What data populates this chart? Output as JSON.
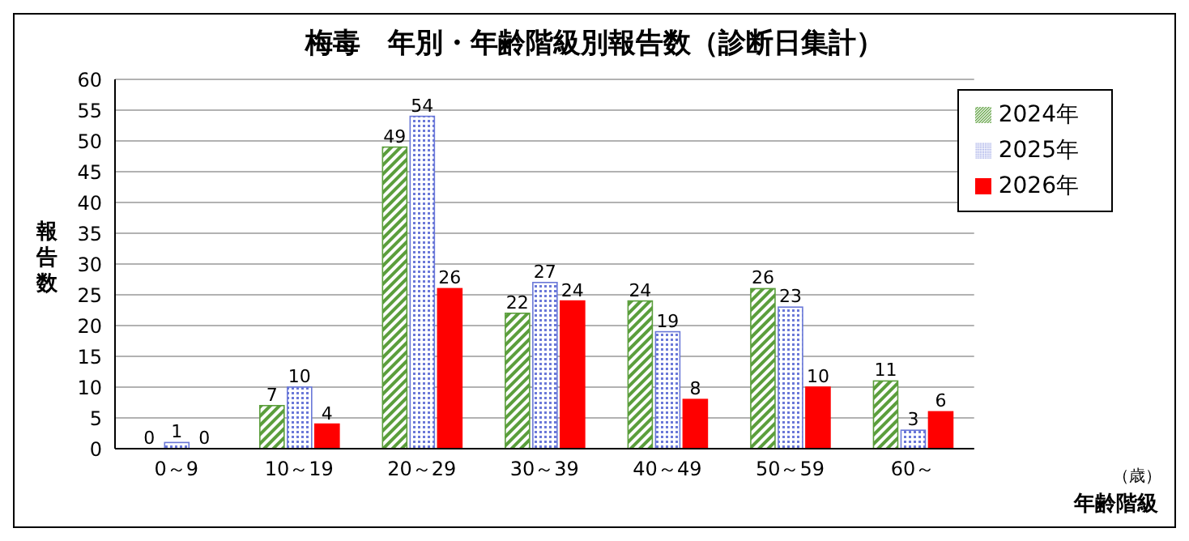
{
  "chart_data": {
    "type": "bar",
    "title": "梅毒　年別・年齢階級別報告数（診断日集計）",
    "xlabel": "年齢階級",
    "ylabel": "報告数",
    "annotations": [
      "（歳）"
    ],
    "categories": [
      "0～9",
      "10～19",
      "20～29",
      "30～39",
      "40～49",
      "50～59",
      "60～"
    ],
    "series": [
      {
        "name": "2024年",
        "color": "#5b9e3c",
        "values": [
          0,
          7,
          49,
          22,
          24,
          26,
          11
        ]
      },
      {
        "name": "2025年",
        "color": "#6a78d8",
        "values": [
          1,
          10,
          54,
          27,
          19,
          23,
          3
        ]
      },
      {
        "name": "2026年",
        "color": "#ff0000",
        "values": [
          0,
          4,
          26,
          24,
          8,
          10,
          6
        ]
      }
    ],
    "ylim": [
      0,
      60
    ],
    "yticks": [
      0,
      5,
      10,
      15,
      20,
      25,
      30,
      35,
      40,
      45,
      50,
      55,
      60
    ],
    "grid": "y",
    "legend": "top right",
    "data_labels": true
  }
}
